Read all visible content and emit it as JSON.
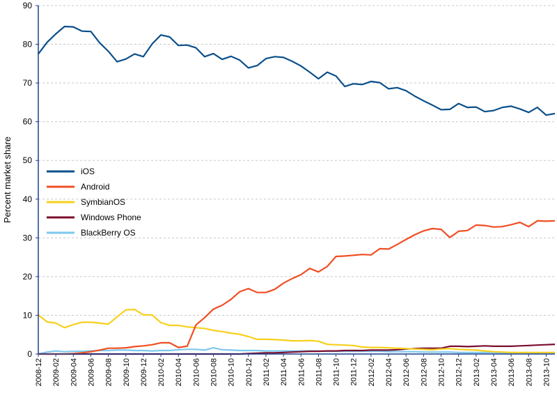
{
  "chart_data": {
    "type": "line",
    "title": "",
    "xlabel": "",
    "ylabel": "Percent market share",
    "ylim": [
      0,
      90
    ],
    "yticks": [
      0,
      10,
      20,
      30,
      40,
      50,
      60,
      70,
      80,
      90
    ],
    "grid": true,
    "legend_position": "left-middle",
    "x_tick_labels": [
      "2008-12",
      "2009-02",
      "2009-04",
      "2009-06",
      "2009-08",
      "2009-10",
      "2009-12",
      "2010-02",
      "2010-04",
      "2010-06",
      "2010-08",
      "2010-10",
      "2010-12",
      "2011-02",
      "2011-04",
      "2011-06",
      "2011-08",
      "2011-10",
      "2011-12",
      "2012-02",
      "2012-04",
      "2012-06",
      "2012-08",
      "2012-10",
      "2012-12",
      "2013-02",
      "2013-04",
      "2013-06",
      "2013-08",
      "2013-10"
    ],
    "series": [
      {
        "name": "iOS",
        "color": "#0b4f8a",
        "values": [
          77.5,
          80.5,
          82.7,
          84.6,
          84.5,
          83.4,
          83.3,
          80.4,
          78.2,
          75.5,
          76.2,
          77.5,
          76.8,
          80.1,
          82.4,
          81.9,
          79.7,
          79.8,
          79.1,
          76.8,
          77.6,
          76.1,
          76.9,
          75.9,
          73.9,
          74.5,
          76.3,
          76.8,
          76.6,
          75.6,
          74.4,
          72.8,
          71.1,
          72.8,
          71.8,
          69.1,
          69.8,
          69.6,
          70.4,
          70.1,
          68.5,
          68.8,
          68.0,
          66.6,
          65.4,
          64.3,
          63.1,
          63.2,
          64.7,
          63.7,
          63.8,
          62.6,
          62.9,
          63.7,
          64.0,
          63.3,
          62.4,
          63.7,
          61.7,
          62.1
        ]
      },
      {
        "name": "Android",
        "color": "#f04e23",
        "values": [
          0,
          0,
          0,
          0,
          0.1,
          0.3,
          0.6,
          1.0,
          1.5,
          1.5,
          1.6,
          1.9,
          2.1,
          2.4,
          2.9,
          2.9,
          1.7,
          2.0,
          7.5,
          9.4,
          11.6,
          12.6,
          14.1,
          16.1,
          16.9,
          15.9,
          15.9,
          16.7,
          18.3,
          19.5,
          20.5,
          22.1,
          21.2,
          22.6,
          25.2,
          25.3,
          25.5,
          25.7,
          25.6,
          27.2,
          27.1,
          28.3,
          29.6,
          30.8,
          31.8,
          32.4,
          32.2,
          30.1,
          31.7,
          31.9,
          33.3,
          33.2,
          32.8,
          32.9,
          33.4,
          34.0,
          32.9,
          34.4,
          34.3,
          34.4
        ]
      },
      {
        "name": "SymbianOS",
        "color": "#f7d01c",
        "values": [
          10.1,
          8.3,
          8.0,
          6.8,
          7.6,
          8.2,
          8.2,
          8.0,
          7.7,
          9.6,
          11.4,
          11.5,
          10.1,
          10.1,
          8.1,
          7.4,
          7.4,
          7.0,
          6.8,
          6.6,
          6.1,
          5.8,
          5.4,
          5.1,
          4.5,
          3.8,
          3.8,
          3.7,
          3.6,
          3.4,
          3.4,
          3.5,
          3.3,
          2.5,
          2.4,
          2.3,
          2.2,
          1.8,
          1.7,
          1.7,
          1.6,
          1.5,
          1.4,
          1.3,
          1.2,
          1.1,
          1.3,
          1.4,
          1.2,
          1.1,
          1.0,
          0.8,
          0.6,
          0.5,
          0.4,
          0.4,
          0.4,
          0.4,
          0.4,
          0.4
        ]
      },
      {
        "name": "Windows Phone",
        "color": "#7b0d2d",
        "values": [
          0,
          0,
          0,
          0,
          0,
          0,
          0,
          0,
          0,
          0,
          0,
          0,
          0,
          0,
          0,
          0,
          0,
          0,
          0,
          0,
          0,
          0,
          0,
          0,
          0.1,
          0.2,
          0.3,
          0.3,
          0.4,
          0.5,
          0.6,
          0.7,
          0.7,
          0.8,
          0.8,
          0.9,
          0.9,
          0.9,
          1.0,
          1.0,
          1.0,
          1.1,
          1.3,
          1.4,
          1.5,
          1.5,
          1.5,
          2.0,
          2.0,
          1.9,
          2.0,
          2.1,
          2.0,
          2.0,
          2.0,
          2.1,
          2.2,
          2.3,
          2.4,
          2.5
        ]
      },
      {
        "name": "BlackBerry OS",
        "color": "#7ec8ef",
        "values": [
          0,
          0.5,
          0.8,
          0.6,
          0.7,
          0.7,
          0.8,
          0.9,
          0.9,
          1.0,
          1.0,
          0.9,
          0.9,
          0.8,
          0.9,
          0.9,
          1.1,
          1.2,
          1.2,
          1.0,
          1.6,
          1.1,
          1.0,
          0.9,
          0.9,
          0.9,
          0.8,
          0.8,
          0.8,
          0.8,
          0.8,
          0.8,
          0.8,
          0.7,
          0.7,
          0.7,
          0.7,
          0.7,
          0.7,
          0.7,
          0.6,
          0.6,
          0.6,
          0.6,
          0.5,
          0.5,
          0.5,
          0.5,
          0.4,
          0.4,
          0.4,
          0.4,
          0.4,
          0.3,
          0.3,
          0.3,
          0.3,
          0.3,
          0.3,
          0.3
        ]
      }
    ]
  }
}
